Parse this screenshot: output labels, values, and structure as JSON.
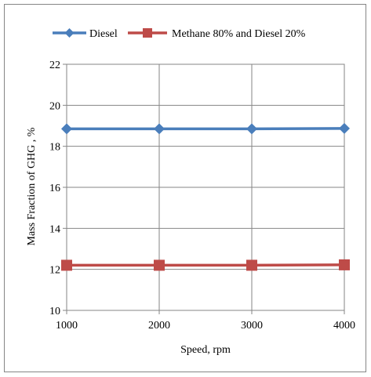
{
  "chart_data": {
    "type": "line",
    "title": "",
    "xlabel": "Speed, rpm",
    "ylabel": "Mass Fraction of GHG , %",
    "x": [
      1000,
      2000,
      3000,
      4000
    ],
    "xlim": [
      1000,
      4000
    ],
    "ylim": [
      10,
      22
    ],
    "yticks": [
      10,
      12,
      14,
      16,
      18,
      20,
      22
    ],
    "xticks": [
      1000,
      2000,
      3000,
      4000
    ],
    "grid": true,
    "legend_position": "top",
    "series": [
      {
        "name": "Diesel",
        "values": [
          18.85,
          18.85,
          18.85,
          18.87
        ],
        "color": "#4a7ebb",
        "marker": "diamond"
      },
      {
        "name": "Methane 80% and Diesel 20%",
        "values": [
          12.2,
          12.2,
          12.2,
          12.22
        ],
        "color": "#be4b48",
        "marker": "square"
      }
    ]
  }
}
